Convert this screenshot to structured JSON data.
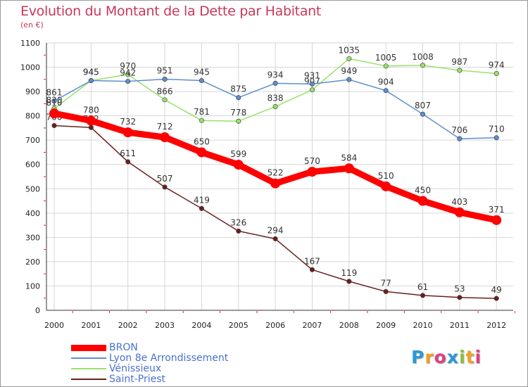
{
  "chart_data": {
    "type": "line",
    "title": "Evolution du Montant de la Dette par Habitant",
    "subtitle": "(en €)",
    "x": [
      "2000",
      "2001",
      "2002",
      "2003",
      "2004",
      "2005",
      "2006",
      "2007",
      "2008",
      "2009",
      "2010",
      "2011",
      "2012"
    ],
    "ylim": [
      0,
      1100
    ],
    "yticks": [
      "0",
      "100",
      "200",
      "300",
      "400",
      "500",
      "600",
      "700",
      "800",
      "900",
      "1000",
      "1100"
    ],
    "grid": true,
    "legend_position": "bottom-left",
    "series": [
      {
        "name": "Saint-Priest",
        "color": "#6b1f1f",
        "values": [
          760,
          752,
          611,
          507,
          419,
          326,
          294,
          167,
          119,
          77,
          61,
          53,
          49
        ]
      },
      {
        "name": "Vénissieux",
        "color": "#99e26a",
        "values": [
          830,
          945,
          970,
          866,
          781,
          778,
          838,
          907,
          1035,
          1005,
          1008,
          987,
          974
        ]
      },
      {
        "name": "Lyon 8e  Arrondissement",
        "color": "#5f8fcc",
        "values": [
          861,
          945,
          942,
          951,
          945,
          875,
          934,
          931,
          949,
          904,
          807,
          706,
          710
        ]
      },
      {
        "name": "BRON",
        "color": "#ff0000",
        "values": [
          810,
          780,
          732,
          712,
          650,
          599,
          522,
          570,
          584,
          510,
          450,
          403,
          371
        ]
      }
    ],
    "legend_order": [
      "BRON",
      "Lyon 8e  Arrondissement",
      "Vénissieux",
      "Saint-Priest"
    ]
  },
  "logo": {
    "letters": [
      "P",
      "r",
      "o",
      "x",
      "i",
      "t",
      "i"
    ],
    "colors": [
      "#2a9ad8",
      "#f0a020",
      "#e04080",
      "#2a9ad8",
      "#8ac03a",
      "#f0a020",
      "#e04080"
    ]
  }
}
